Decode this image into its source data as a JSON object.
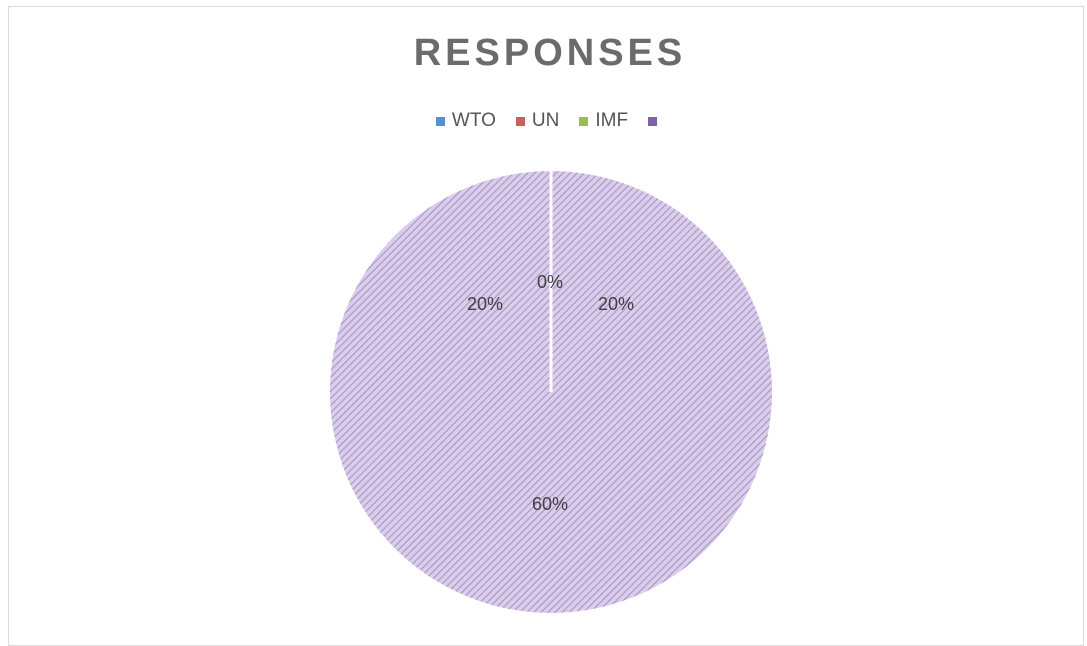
{
  "chart_data": {
    "type": "pie",
    "title": "RESPONSES",
    "categories": [
      "WTO",
      "UN",
      "IMF",
      ""
    ],
    "values": [
      20,
      20,
      60,
      0
    ],
    "data_labels": [
      "20%",
      "20%",
      "60%",
      "0%"
    ],
    "colors": [
      "#5b8fc9",
      "#c9605a",
      "#9bbb59",
      "#8064a2"
    ],
    "pattern": "diagonal-hatch",
    "legend_position": "top"
  }
}
